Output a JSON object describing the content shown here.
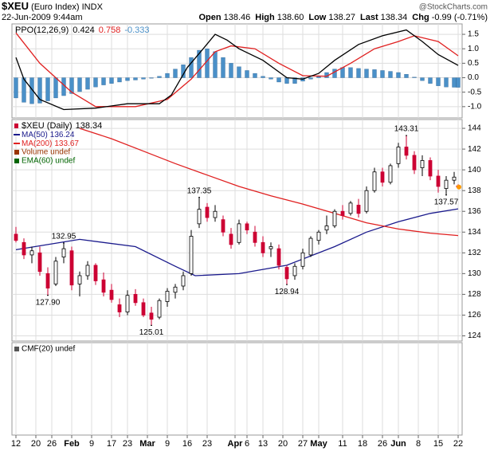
{
  "header": {
    "symbol": "$XEU",
    "name": "(Euro Index)",
    "exchange": "INDX",
    "date": "22-Jun-2009 9:44am",
    "quote": [
      {
        "label": "Open",
        "value": "138.46"
      },
      {
        "label": "High",
        "value": "138.60"
      },
      {
        "label": "Low",
        "value": "138.27"
      },
      {
        "label": "Last",
        "value": "138.34"
      },
      {
        "label": "Chg",
        "value": "-0.99 (-0.71%)"
      }
    ],
    "source": "@StockCharts.com"
  },
  "chart_data": [
    {
      "type": "line",
      "label": "PPO(12,26,9)",
      "xlim": [
        -1,
        112
      ],
      "ylim": [
        -1.39,
        1.86
      ],
      "yticks": [
        1.5,
        {
          "value": 1.0,
          "label": "1.0"
        },
        0.5,
        {
          "value": 0.0,
          "label": "0.0"
        },
        -0.5,
        {
          "value": -1.0,
          "label": "-1.0"
        }
      ],
      "grid": true,
      "series": [
        {
          "style": "histogram",
          "color": "#4a90c8",
          "x": [
            0,
            2,
            4,
            6,
            8,
            10,
            12,
            14,
            16,
            18,
            20,
            22,
            24,
            26,
            28,
            30,
            32,
            34,
            36,
            38,
            40,
            42,
            44,
            46,
            48,
            50,
            52,
            54,
            56,
            58,
            60,
            62,
            64,
            66,
            68,
            70,
            72,
            74,
            76,
            78,
            80,
            82,
            84,
            86,
            88,
            90,
            92,
            94,
            96,
            98,
            100,
            102,
            104,
            106,
            108,
            110,
            111
          ],
          "values": [
            -0.7,
            -0.85,
            -0.9,
            -0.88,
            -0.8,
            -0.7,
            -0.62,
            -0.55,
            -0.48,
            -0.4,
            -0.32,
            -0.25,
            -0.2,
            -0.15,
            -0.1,
            -0.08,
            -0.05,
            -0.02,
            0.05,
            0.15,
            0.3,
            0.45,
            0.7,
            0.95,
            1.0,
            0.9,
            0.7,
            0.5,
            0.38,
            0.25,
            0.15,
            0.05,
            -0.05,
            -0.15,
            -0.2,
            -0.2,
            -0.12,
            -0.05,
            0.05,
            0.18,
            0.3,
            0.35,
            0.35,
            0.32,
            0.3,
            0.28,
            0.25,
            0.22,
            0.18,
            0.12,
            0.02,
            -0.1,
            -0.2,
            -0.28,
            -0.32,
            -0.33,
            -0.333
          ]
        },
        {
          "style": "line",
          "color": "#e02020",
          "x": [
            0,
            6,
            14,
            20,
            30,
            38,
            44,
            50,
            54,
            60,
            66,
            72,
            78,
            84,
            90,
            96,
            100,
            106,
            111
          ],
          "values": [
            1.55,
            0.5,
            -0.5,
            -1.0,
            -1.0,
            -0.75,
            -0.05,
            0.9,
            1.1,
            1.0,
            0.5,
            0.07,
            0.05,
            0.5,
            1.0,
            1.25,
            1.45,
            1.25,
            0.758
          ]
        },
        {
          "style": "line",
          "color": "#000000",
          "x": [
            0,
            2,
            6,
            12,
            20,
            28,
            36,
            39,
            43,
            47,
            50,
            53,
            56,
            62,
            68,
            72,
            76,
            80,
            86,
            92,
            98,
            102,
            106,
            111
          ],
          "values": [
            0.7,
            -0.05,
            -0.75,
            -1.1,
            -1.05,
            -0.9,
            -0.9,
            -0.6,
            0.35,
            1.0,
            1.5,
            1.3,
            1.0,
            0.6,
            0.0,
            -0.05,
            0.15,
            0.6,
            1.15,
            1.45,
            1.65,
            1.25,
            0.8,
            0.424
          ]
        }
      ]
    },
    {
      "type": "candlestick",
      "label": "$XEU (Daily)",
      "xlim": [
        -1,
        112
      ],
      "ylim": [
        123.5,
        144.85
      ],
      "yticks": [
        124,
        126,
        128,
        130,
        132,
        134,
        136,
        138,
        140,
        142,
        144
      ],
      "grid": true,
      "up_color": "#000000",
      "down_color": "#cc0033",
      "last_color": "#ff9900",
      "x": [
        0,
        2,
        4,
        6,
        8,
        10,
        12,
        14,
        16,
        18,
        20,
        22,
        24,
        26,
        28,
        30,
        32,
        34,
        36,
        38,
        40,
        42,
        44,
        46,
        48,
        50,
        52,
        54,
        56,
        58,
        60,
        62,
        64,
        66,
        68,
        70,
        72,
        74,
        76,
        78,
        80,
        82,
        84,
        86,
        88,
        90,
        92,
        94,
        96,
        98,
        100,
        102,
        104,
        106,
        108,
        110,
        111
      ],
      "open": [
        133.8,
        133.0,
        131.8,
        132.0,
        130.0,
        129.0,
        131.6,
        132.2,
        129.0,
        129.8,
        130.8,
        129.4,
        128.4,
        127.0,
        126.3,
        128.0,
        127.2,
        126.2,
        125.8,
        127.3,
        128.2,
        128.8,
        130.0,
        134.8,
        136.4,
        135.4,
        135.2,
        133.8,
        133.0,
        134.8,
        134.0,
        133.0,
        132.4,
        132.4,
        130.6,
        129.8,
        130.7,
        131.8,
        133.2,
        134.2,
        134.6,
        136.0,
        135.8,
        136.6,
        136.0,
        138.0,
        139.8,
        138.8,
        140.6,
        142.2,
        141.4,
        140.2,
        140.9,
        139.4,
        138.2,
        139.0,
        138.46
      ],
      "high": [
        134.5,
        133.4,
        132.6,
        132.6,
        130.6,
        131.6,
        132.95,
        132.6,
        130.2,
        131.2,
        131.0,
        130.1,
        129.0,
        127.6,
        128.4,
        128.5,
        127.6,
        126.8,
        127.6,
        128.6,
        129.0,
        130.2,
        134.2,
        137.35,
        136.8,
        136.6,
        135.6,
        134.4,
        135.2,
        135.0,
        134.6,
        133.6,
        133.0,
        132.8,
        130.8,
        131.0,
        132.4,
        133.6,
        134.2,
        135.6,
        136.2,
        136.6,
        137.0,
        137.2,
        138.4,
        140.2,
        140.2,
        140.6,
        142.6,
        143.31,
        141.8,
        141.4,
        141.2,
        140.0,
        139.4,
        139.8,
        138.6
      ],
      "low": [
        133.0,
        131.4,
        131.0,
        129.8,
        127.9,
        128.8,
        131.0,
        128.4,
        127.8,
        129.4,
        128.9,
        127.8,
        127.2,
        125.8,
        126.0,
        126.9,
        125.8,
        125.01,
        125.6,
        126.8,
        127.6,
        128.4,
        129.8,
        134.4,
        135.0,
        135.0,
        133.6,
        132.4,
        132.8,
        133.8,
        132.6,
        131.6,
        131.6,
        130.4,
        128.94,
        129.4,
        130.4,
        131.6,
        132.8,
        133.8,
        134.4,
        135.2,
        135.6,
        135.4,
        135.8,
        137.8,
        138.4,
        138.6,
        140.2,
        141.0,
        139.6,
        139.4,
        139.0,
        137.8,
        137.57,
        138.6,
        138.27
      ],
      "close": [
        133.2,
        131.8,
        132.2,
        130.2,
        128.6,
        131.2,
        132.4,
        128.9,
        129.8,
        130.8,
        129.3,
        128.2,
        127.5,
        126.3,
        127.9,
        127.2,
        126.0,
        125.6,
        127.4,
        128.3,
        128.7,
        129.8,
        133.6,
        136.2,
        135.4,
        136.0,
        134.0,
        132.8,
        134.8,
        134.2,
        133.0,
        132.0,
        132.6,
        130.8,
        129.5,
        130.7,
        132.0,
        133.4,
        134.0,
        134.6,
        136.0,
        135.6,
        136.8,
        135.8,
        138.0,
        139.8,
        138.8,
        140.4,
        142.2,
        141.4,
        140.0,
        140.9,
        139.4,
        138.4,
        139.0,
        139.3,
        138.34
      ],
      "annotations": [
        {
          "x": 12,
          "value": 132.95,
          "label": "132.95"
        },
        {
          "x": 8,
          "value": 127.9,
          "label": "127.90"
        },
        {
          "x": 34,
          "value": 125.01,
          "label": "125.01"
        },
        {
          "x": 46,
          "value": 137.35,
          "label": "137.35"
        },
        {
          "x": 68,
          "value": 128.94,
          "label": "128.94"
        },
        {
          "x": 98,
          "value": 143.31,
          "label": "143.31"
        },
        {
          "x": 108,
          "value": 137.57,
          "label": "137.57"
        }
      ],
      "series": [
        {
          "name": "MA(50)",
          "color": "#1a1a8c",
          "x": [
            0,
            16,
            30,
            40,
            45,
            56,
            68,
            80,
            88,
            96,
            104,
            111
          ],
          "values": [
            132.3,
            133.3,
            132.6,
            130.7,
            129.8,
            130.0,
            130.8,
            132.6,
            134.0,
            135.0,
            135.8,
            136.24
          ]
        },
        {
          "name": "MA(200)",
          "color": "#e02020",
          "x": [
            16,
            24,
            32,
            40,
            48,
            56,
            64,
            72,
            80,
            88,
            96,
            104,
            111
          ],
          "values": [
            144.0,
            143.0,
            141.8,
            140.6,
            139.5,
            138.4,
            137.5,
            136.7,
            135.8,
            134.9,
            134.3,
            133.9,
            133.67
          ]
        }
      ],
      "notes": [
        {
          "text": "Volume undef",
          "color": "#993300"
        },
        {
          "text": "EMA(60) undef",
          "color": "#006400"
        }
      ]
    },
    {
      "type": "line",
      "label": "CMF(20) undef",
      "xlim": [
        -1,
        112
      ],
      "grid": true,
      "series": [],
      "xticks": [
        {
          "value": 0,
          "label": "12"
        },
        {
          "value": 5,
          "label": "20"
        },
        {
          "value": 9,
          "label": "26"
        },
        {
          "value": 14,
          "label": "Feb"
        },
        {
          "value": 19,
          "label": "9"
        },
        {
          "value": 24,
          "label": "17"
        },
        {
          "value": 28,
          "label": "23"
        },
        {
          "value": 33,
          "label": "Mar"
        },
        {
          "value": 38,
          "label": "9"
        },
        {
          "value": 43,
          "label": "16"
        },
        {
          "value": 48,
          "label": "23"
        },
        {
          "value": 55,
          "label": "Apr"
        },
        {
          "value": 58,
          "label": "6"
        },
        {
          "value": 62,
          "label": "13"
        },
        {
          "value": 67,
          "label": "20"
        },
        {
          "value": 72,
          "label": "27"
        },
        {
          "value": 76,
          "label": "May"
        },
        {
          "value": 82,
          "label": "11"
        },
        {
          "value": 87,
          "label": "18"
        },
        {
          "value": 92,
          "label": "26"
        },
        {
          "value": 96,
          "label": "Jun"
        },
        {
          "value": 101,
          "label": "8"
        },
        {
          "value": 106,
          "label": "15"
        },
        {
          "value": 111,
          "label": "22"
        }
      ]
    }
  ]
}
